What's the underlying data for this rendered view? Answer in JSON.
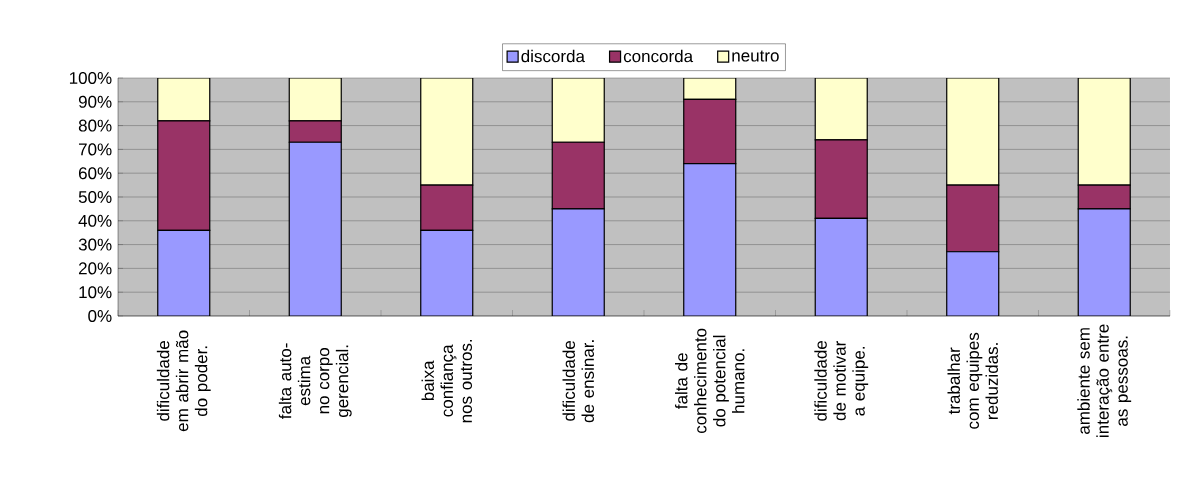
{
  "chart_data": {
    "type": "bar",
    "stacked": true,
    "categories": [
      "dificuldade em abrir mão do poder.",
      "falta auto-estima no corpo gerencial.",
      "baixa confiança nos outros.",
      "dificuldade de ensinar.",
      "falta de conhecimento do potencial humano.",
      "dificuldade de motivar a equipe.",
      "trabalhar com equipes reduzidas.",
      "ambiente sem interação entre as pessoas."
    ],
    "series": [
      {
        "name": "discorda",
        "color": "#9999ff",
        "values": [
          36,
          73,
          36,
          45,
          64,
          41,
          27,
          45
        ]
      },
      {
        "name": "concorda",
        "color": "#993366",
        "values": [
          46,
          9,
          19,
          28,
          27,
          33,
          28,
          10
        ]
      },
      {
        "name": "neutro",
        "color": "#ffffcc",
        "values": [
          18,
          18,
          45,
          27,
          9,
          26,
          45,
          45
        ]
      }
    ],
    "ylim": [
      0,
      100
    ],
    "yticks": [
      {
        "value": 0,
        "label": "0%"
      },
      {
        "value": 10,
        "label": "10%"
      },
      {
        "value": 20,
        "label": "20%"
      },
      {
        "value": 30,
        "label": "30%"
      },
      {
        "value": 40,
        "label": "40%"
      },
      {
        "value": 50,
        "label": "50%"
      },
      {
        "value": 60,
        "label": "60%"
      },
      {
        "value": 70,
        "label": "70%"
      },
      {
        "value": 80,
        "label": "80%"
      },
      {
        "value": 90,
        "label": "90%"
      },
      {
        "value": 100,
        "label": "100%"
      }
    ],
    "grid": "y",
    "legend": "top"
  }
}
